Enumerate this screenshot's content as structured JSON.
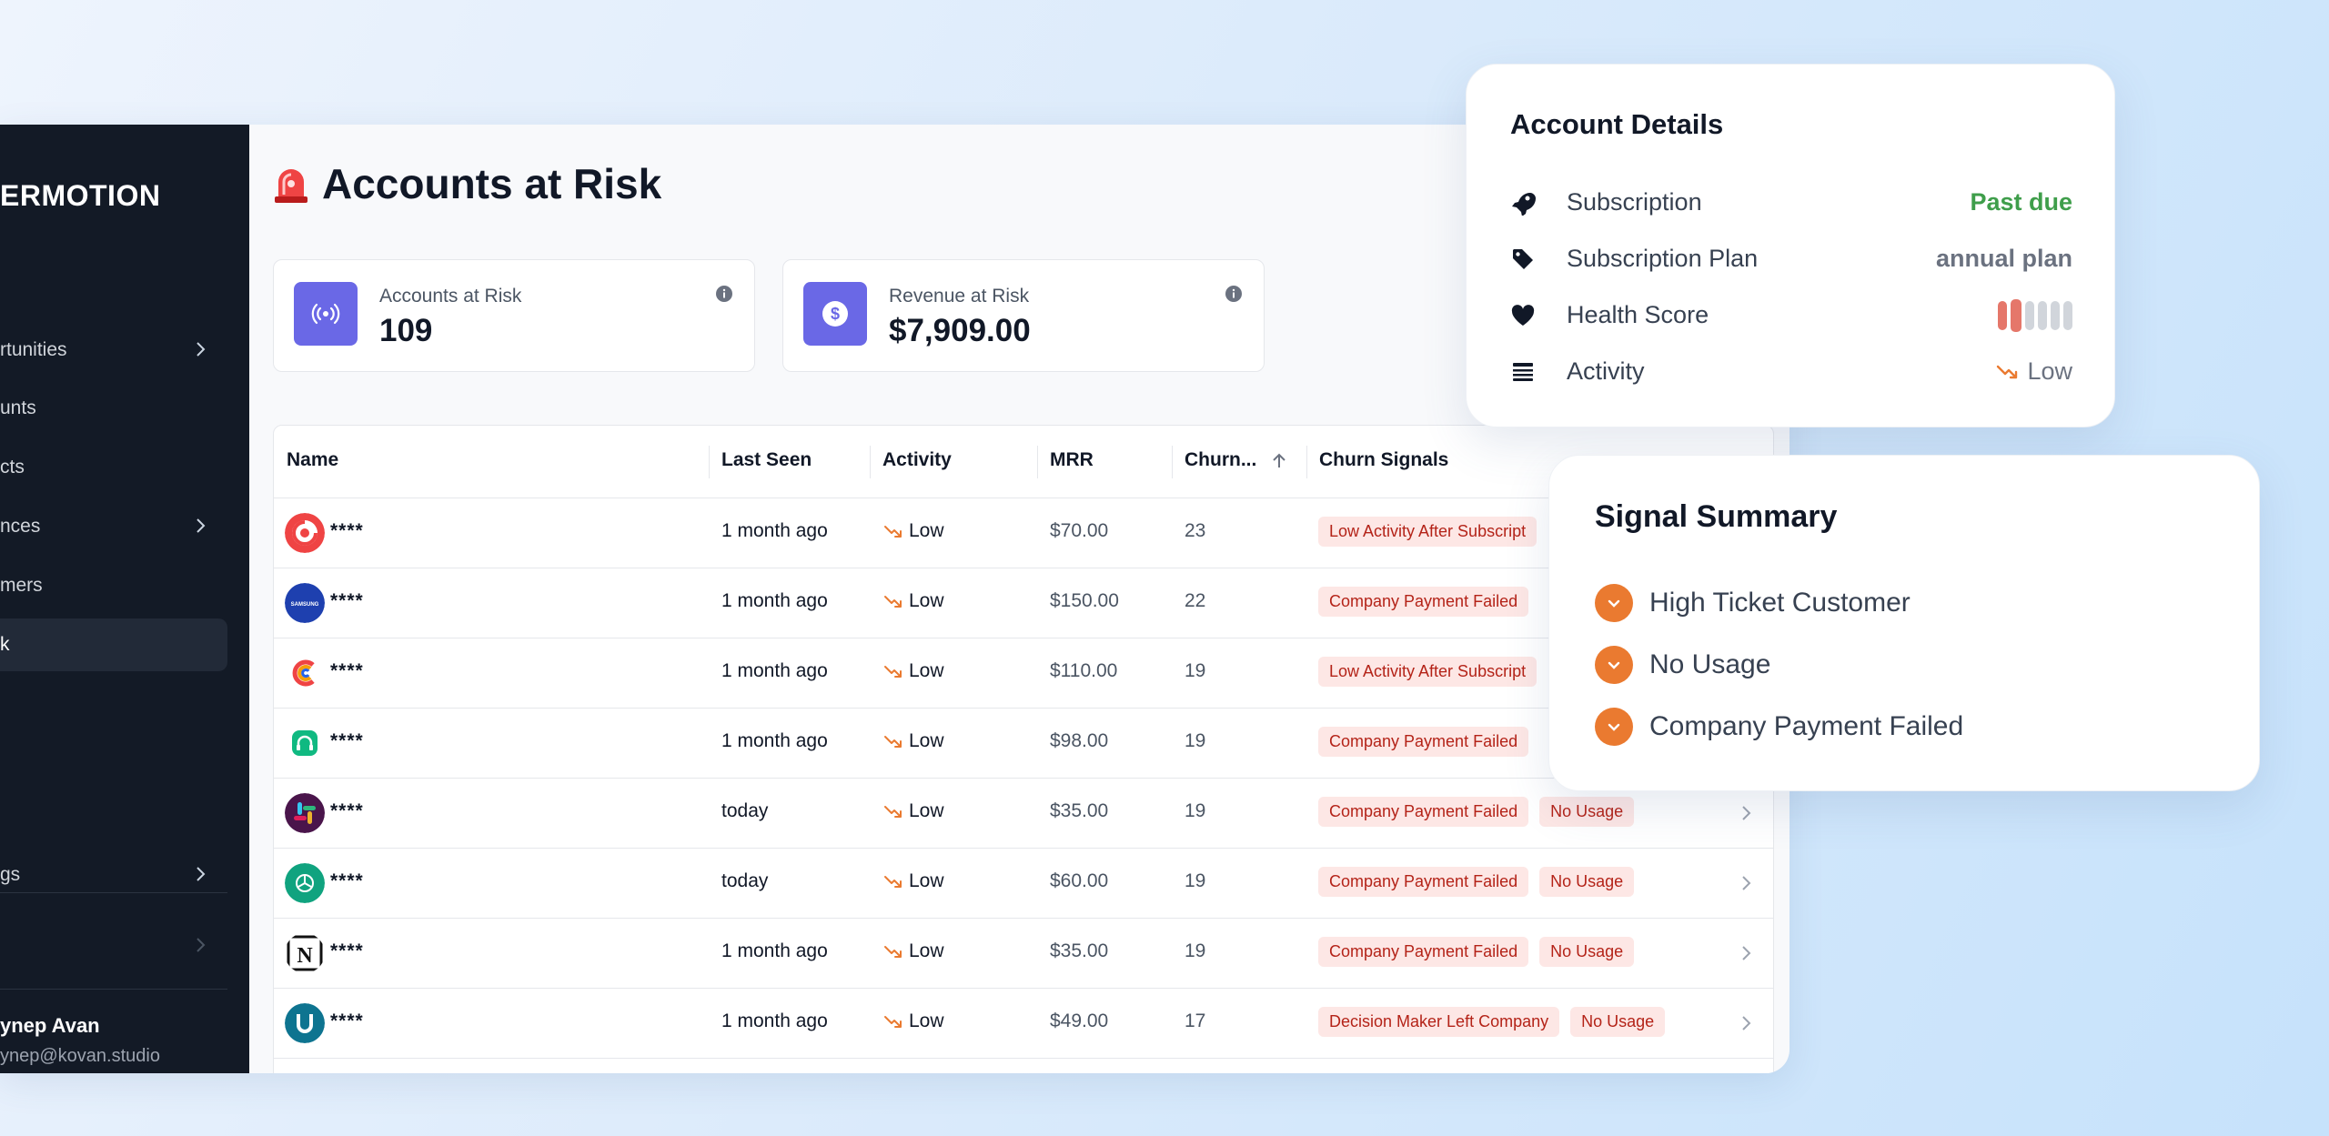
{
  "sidebar": {
    "brand": "ERMOTION",
    "items": [
      {
        "label": "rtunities",
        "chevron": true
      },
      {
        "label": "unts",
        "chevron": false
      },
      {
        "label": "cts",
        "chevron": false
      },
      {
        "label": "nces",
        "chevron": true
      },
      {
        "label": "mers",
        "chevron": false
      },
      {
        "label": "k",
        "chevron": false,
        "active": true
      },
      {
        "label": "gs",
        "chevron": true
      },
      {
        "label": "",
        "chevron": true
      }
    ],
    "user_name": "ynep Avan",
    "user_email": "ynep@kovan.studio"
  },
  "page": {
    "title": "Accounts at Risk"
  },
  "stats": [
    {
      "label": "Accounts at Risk",
      "value": "109",
      "icon": "broadcast-icon"
    },
    {
      "label": "Revenue at Risk",
      "value": "$7,909.00",
      "icon": "dollar-icon"
    }
  ],
  "table": {
    "headers": {
      "name": "Name",
      "last_seen": "Last Seen",
      "activity": "Activity",
      "mrr": "MRR",
      "churn": "Churn...",
      "signals": "Churn Signals"
    },
    "rows": [
      {
        "name": "****",
        "logo": "target-logo",
        "last_seen": "1 month ago",
        "activity": "Low",
        "mrr": "$70.00",
        "churn": "23",
        "signals": [
          "Low Activity After Subscript"
        ]
      },
      {
        "name": "****",
        "logo": "samsung-logo",
        "last_seen": "1 month ago",
        "activity": "Low",
        "mrr": "$150.00",
        "churn": "22",
        "signals": [
          "Company Payment Failed"
        ]
      },
      {
        "name": "****",
        "logo": "c-logo",
        "last_seen": "1 month ago",
        "activity": "Low",
        "mrr": "$110.00",
        "churn": "19",
        "signals": [
          "Low Activity After Subscript"
        ]
      },
      {
        "name": "****",
        "logo": "headset-logo",
        "last_seen": "1 month ago",
        "activity": "Low",
        "mrr": "$98.00",
        "churn": "19",
        "signals": [
          "Company Payment Failed"
        ]
      },
      {
        "name": "****",
        "logo": "slack-logo",
        "last_seen": "today",
        "activity": "Low",
        "mrr": "$35.00",
        "churn": "19",
        "signals": [
          "Company Payment Failed",
          "No Usage"
        ]
      },
      {
        "name": "****",
        "logo": "openai-logo",
        "last_seen": "today",
        "activity": "Low",
        "mrr": "$60.00",
        "churn": "19",
        "signals": [
          "Company Payment Failed",
          "No Usage"
        ]
      },
      {
        "name": "****",
        "logo": "notion-logo",
        "last_seen": "1 month ago",
        "activity": "Low",
        "mrr": "$35.00",
        "churn": "19",
        "signals": [
          "Company Payment Failed",
          "No Usage"
        ]
      },
      {
        "name": "****",
        "logo": "u-logo",
        "last_seen": "1 month ago",
        "activity": "Low",
        "mrr": "$49.00",
        "churn": "17",
        "signals": [
          "Decision Maker Left Company",
          "No Usage"
        ]
      }
    ]
  },
  "account_details": {
    "title": "Account Details",
    "rows": [
      {
        "label": "Subscription",
        "value": "Past due",
        "icon": "rocket-icon"
      },
      {
        "label": "Subscription Plan",
        "value": "annual plan",
        "icon": "tag-icon"
      },
      {
        "label": "Health Score",
        "value": "",
        "icon": "heart-icon"
      },
      {
        "label": "Activity",
        "value": "Low",
        "icon": "stack-icon"
      }
    ],
    "health_level": 0.33
  },
  "signal_summary": {
    "title": "Signal Summary",
    "items": [
      "High Ticket Customer",
      "No Usage",
      "Company Payment Failed"
    ]
  },
  "colors": {
    "accent": "#6a68e6",
    "sidebar_bg": "#131a26",
    "badge_bg": "#fde7e5",
    "badge_text": "#b42318",
    "success": "#3f9e4b",
    "trend_low": "#ea7a30",
    "health_red": "#e5776a"
  }
}
